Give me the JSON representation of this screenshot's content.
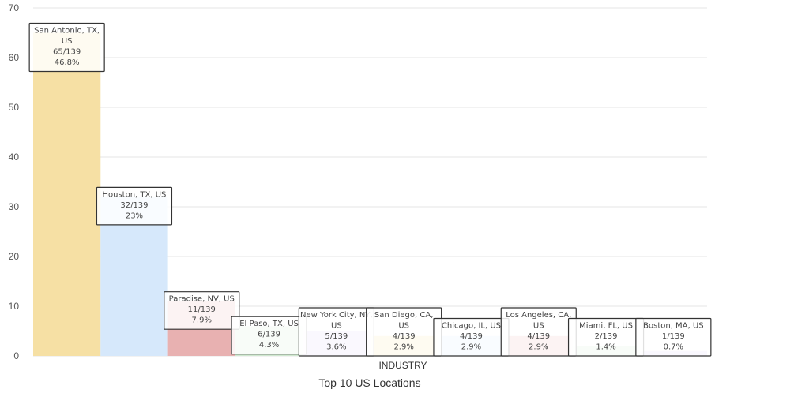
{
  "chart_data": {
    "type": "bar",
    "title": "Top 10 US Locations",
    "xlabel": "INDUSTRY",
    "ylabel": "",
    "ylim": [
      0,
      70
    ],
    "yticks": [
      0,
      10,
      20,
      30,
      40,
      50,
      60,
      70
    ],
    "grid": true,
    "bars": [
      {
        "lines": [
          "San Antonio, TX,",
          "US",
          "65/139",
          "46.8%"
        ],
        "value": 65,
        "color": "#f6e0a4"
      },
      {
        "lines": [
          "Houston, TX, US",
          "32/139",
          "23%"
        ],
        "value": 32,
        "color": "#d6e8fb"
      },
      {
        "lines": [
          "Paradise, NV, US",
          "11/139",
          "7.9%"
        ],
        "value": 11,
        "color": "#e8b1b1"
      },
      {
        "lines": [
          "El Paso, TX, US",
          "6/139",
          "4.3%"
        ],
        "value": 6,
        "color": "#cfe8cf"
      },
      {
        "lines": [
          "New York City, NY,",
          "US",
          "5/139",
          "3.6%"
        ],
        "value": 5,
        "color": "#dad0f4"
      },
      {
        "lines": [
          "San Diego, CA,",
          "US",
          "4/139",
          "2.9%"
        ],
        "value": 4,
        "color": "#f6e0a4"
      },
      {
        "lines": [
          "Chicago, IL, US",
          "4/139",
          "2.9%"
        ],
        "value": 4,
        "color": "#d6e8fb"
      },
      {
        "lines": [
          "Los Angeles, CA,",
          "US",
          "4/139",
          "2.9%"
        ],
        "value": 4,
        "color": "#e8b1b1"
      },
      {
        "lines": [
          "Miami, FL, US",
          "2/139",
          "1.4%"
        ],
        "value": 2,
        "color": "#cfe8cf"
      },
      {
        "lines": [
          "Boston, MA, US",
          "1/139",
          "0.7%"
        ],
        "value": 1,
        "color": "#dad0f4"
      }
    ]
  }
}
